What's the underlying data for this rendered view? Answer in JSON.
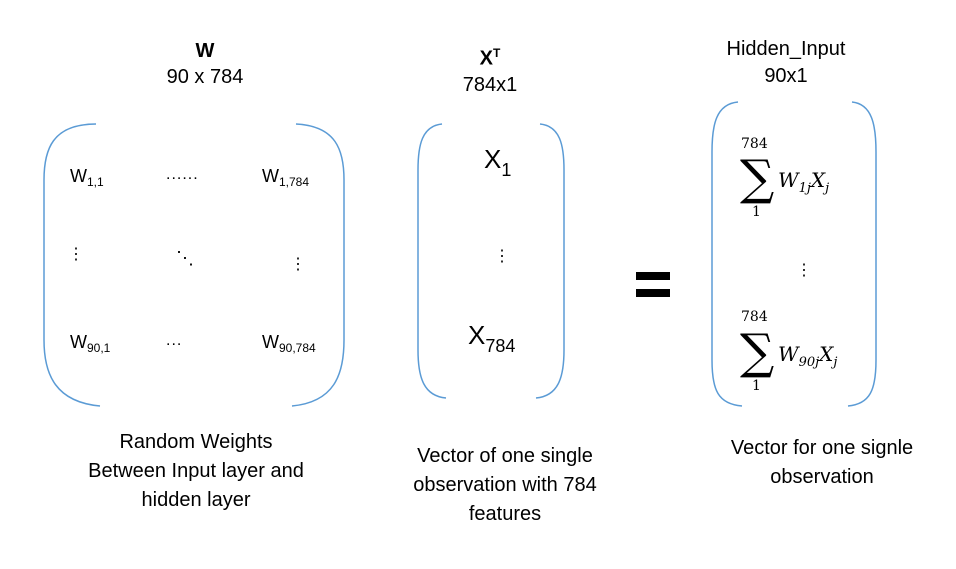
{
  "colors": {
    "bracket": "#5b9bd5",
    "text": "#000000"
  },
  "matrix_w": {
    "title": "W",
    "dims": "90 x 784",
    "cells": {
      "r1c1_base": "W",
      "r1c1_sub": "1,1",
      "r1c2": "......",
      "r1c3_base": "W",
      "r1c3_sub": "1,784",
      "r2c1": "⋮",
      "r2c2": "⋱",
      "r2c3": "⋮",
      "r3c1_base": "W",
      "r3c1_sub": "90,1",
      "r3c2": "...",
      "r3c3_base": "W",
      "r3c3_sub": "90,784"
    },
    "caption_lines": [
      "Random Weights",
      "Between Input layer and",
      "hidden layer"
    ]
  },
  "vector_x": {
    "title_base": "X",
    "title_sup": "T",
    "dims": "784x1",
    "top_base": "X",
    "top_sub": "1",
    "middle": "⋮",
    "bottom_base": "X",
    "bottom_sub": "784",
    "caption_lines": [
      "Vector of one single",
      "observation with 784",
      "features"
    ]
  },
  "equals": "=",
  "hidden_input": {
    "title": "Hidden_Input",
    "dims": "90x1",
    "sum_symbol": "∑",
    "top": {
      "upper": "784",
      "lower": "1",
      "term_w": "W",
      "term_sub": "1j",
      "term_x": "X",
      "term_xsub": "j"
    },
    "middle": "⋮",
    "bottom": {
      "upper": "784",
      "lower": "1",
      "term_w": "W",
      "term_sub": "90j",
      "term_x": "X",
      "term_xsub": "j"
    },
    "caption_lines": [
      "Vector for one signle",
      "observation"
    ]
  }
}
